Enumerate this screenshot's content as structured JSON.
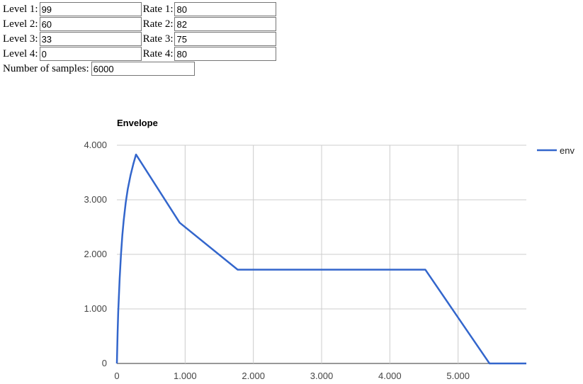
{
  "params": {
    "levels": [
      {
        "label": "Level 1:",
        "value": "99"
      },
      {
        "label": "Level 2:",
        "value": "60"
      },
      {
        "label": "Level 3:",
        "value": "33"
      },
      {
        "label": "Level 4:",
        "value": "0"
      }
    ],
    "rates": [
      {
        "label": "Rate 1:",
        "value": "80"
      },
      {
        "label": "Rate 2:",
        "value": "82"
      },
      {
        "label": "Rate 3:",
        "value": "75"
      },
      {
        "label": "Rate 4:",
        "value": "80"
      }
    ],
    "samples": {
      "label": "Number of samples:",
      "value": "6000"
    }
  },
  "chart_data": {
    "type": "line",
    "title": "Envelope",
    "xlabel": "",
    "ylabel": "",
    "xlim": [
      0,
      6000
    ],
    "ylim": [
      0,
      4
    ],
    "x_ticks": [
      {
        "value": 0,
        "label": "0"
      },
      {
        "value": 1000,
        "label": "1.000"
      },
      {
        "value": 2000,
        "label": "2.000"
      },
      {
        "value": 3000,
        "label": "3.000"
      },
      {
        "value": 4000,
        "label": "4.000"
      },
      {
        "value": 5000,
        "label": "5.000"
      }
    ],
    "y_ticks": [
      {
        "value": 0,
        "label": "0"
      },
      {
        "value": 1,
        "label": "1.000"
      },
      {
        "value": 2,
        "label": "2.000"
      },
      {
        "value": 3,
        "label": "3.000"
      },
      {
        "value": 4,
        "label": "4.000"
      }
    ],
    "grid": true,
    "legend": "right",
    "series": [
      {
        "name": "env",
        "color": "#3366cc",
        "x": [
          0,
          10,
          20,
          40,
          60,
          80,
          100,
          130,
          160,
          200,
          240,
          280,
          920,
          1770,
          4520,
          5460,
          6000
        ],
        "y": [
          0,
          0.55,
          0.95,
          1.55,
          2.0,
          2.35,
          2.62,
          2.95,
          3.2,
          3.45,
          3.65,
          3.83,
          2.58,
          1.72,
          1.72,
          0,
          0
        ]
      }
    ]
  }
}
